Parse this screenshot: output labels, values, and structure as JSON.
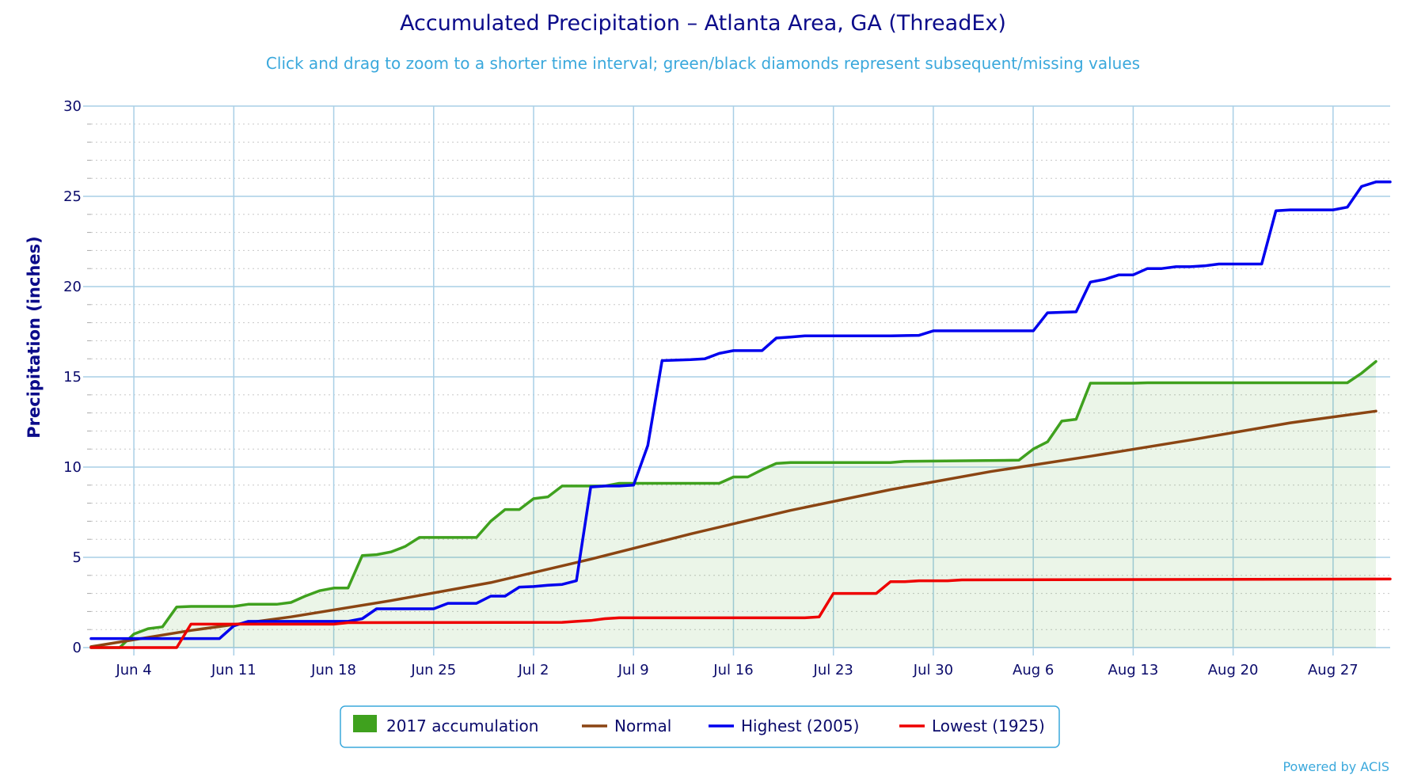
{
  "chart_data": {
    "type": "line",
    "title": "Accumulated Precipitation – Atlanta Area, GA (ThreadEx)",
    "subtitle": "Click and drag to zoom to a shorter time interval; green/black diamonds represent subsequent/missing values",
    "ylabel": "Precipitation (inches)",
    "ylim": [
      0,
      30
    ],
    "yticks": [
      0,
      5,
      10,
      15,
      20,
      25,
      30
    ],
    "x_unit": "day of period (Jun 1 = 1)",
    "xlim": [
      1,
      92
    ],
    "x_ticks": [
      {
        "day": 4,
        "label": "Jun 4"
      },
      {
        "day": 11,
        "label": "Jun 11"
      },
      {
        "day": 18,
        "label": "Jun 18"
      },
      {
        "day": 25,
        "label": "Jun 25"
      },
      {
        "day": 32,
        "label": "Jul 2"
      },
      {
        "day": 39,
        "label": "Jul 9"
      },
      {
        "day": 46,
        "label": "Jul 16"
      },
      {
        "day": 53,
        "label": "Jul 23"
      },
      {
        "day": 60,
        "label": "Jul 30"
      },
      {
        "day": 67,
        "label": "Aug 6"
      },
      {
        "day": 74,
        "label": "Aug 13"
      },
      {
        "day": 81,
        "label": "Aug 20"
      },
      {
        "day": 88,
        "label": "Aug 27"
      }
    ],
    "grid": true,
    "legend_position": "bottom-center",
    "series": [
      {
        "name": "2017 accumulation",
        "style": "area",
        "color": "#3fa11e",
        "points": [
          [
            1,
            0.0
          ],
          [
            3,
            0.0
          ],
          [
            4,
            0.75
          ],
          [
            5,
            1.05
          ],
          [
            6,
            1.15
          ],
          [
            7,
            2.25
          ],
          [
            8,
            2.28
          ],
          [
            11,
            2.28
          ],
          [
            12,
            2.4
          ],
          [
            14,
            2.4
          ],
          [
            15,
            2.5
          ],
          [
            16,
            2.85
          ],
          [
            17,
            3.15
          ],
          [
            18,
            3.3
          ],
          [
            19,
            3.3
          ],
          [
            20,
            5.1
          ],
          [
            21,
            5.15
          ],
          [
            22,
            5.3
          ],
          [
            23,
            5.6
          ],
          [
            24,
            6.1
          ],
          [
            28,
            6.1
          ],
          [
            29,
            7.0
          ],
          [
            30,
            7.65
          ],
          [
            31,
            7.65
          ],
          [
            32,
            8.25
          ],
          [
            33,
            8.35
          ],
          [
            34,
            8.95
          ],
          [
            37,
            8.95
          ],
          [
            38,
            9.1
          ],
          [
            40,
            9.1
          ],
          [
            45,
            9.1
          ],
          [
            46,
            9.45
          ],
          [
            47,
            9.45
          ],
          [
            48,
            9.85
          ],
          [
            49,
            10.2
          ],
          [
            50,
            10.25
          ],
          [
            57,
            10.25
          ],
          [
            58,
            10.32
          ],
          [
            66,
            10.38
          ],
          [
            67,
            11.0
          ],
          [
            68,
            11.4
          ],
          [
            69,
            12.55
          ],
          [
            70,
            12.65
          ],
          [
            71,
            14.65
          ],
          [
            74,
            14.65
          ],
          [
            75,
            14.67
          ],
          [
            89,
            14.67
          ],
          [
            90,
            15.2
          ],
          [
            91,
            15.85
          ]
        ]
      },
      {
        "name": "Normal",
        "style": "line",
        "color": "#8b4513",
        "points": [
          [
            1,
            0.05
          ],
          [
            8,
            0.95
          ],
          [
            15,
            1.7
          ],
          [
            22,
            2.6
          ],
          [
            29,
            3.6
          ],
          [
            36,
            4.9
          ],
          [
            43,
            6.3
          ],
          [
            50,
            7.6
          ],
          [
            57,
            8.75
          ],
          [
            64,
            9.75
          ],
          [
            71,
            10.6
          ],
          [
            78,
            11.5
          ],
          [
            85,
            12.45
          ],
          [
            91,
            13.1
          ]
        ]
      },
      {
        "name": "Highest (2005)",
        "style": "line",
        "color": "#0000ee",
        "points": [
          [
            1,
            0.5
          ],
          [
            10,
            0.5
          ],
          [
            11,
            1.2
          ],
          [
            12,
            1.45
          ],
          [
            19,
            1.45
          ],
          [
            20,
            1.6
          ],
          [
            21,
            2.15
          ],
          [
            25,
            2.15
          ],
          [
            26,
            2.45
          ],
          [
            28,
            2.45
          ],
          [
            29,
            2.85
          ],
          [
            30,
            2.85
          ],
          [
            31,
            3.35
          ],
          [
            32,
            3.38
          ],
          [
            33,
            3.45
          ],
          [
            34,
            3.5
          ],
          [
            35,
            3.7
          ],
          [
            36,
            8.9
          ],
          [
            37,
            8.95
          ],
          [
            38,
            8.95
          ],
          [
            39,
            9.0
          ],
          [
            40,
            11.2
          ],
          [
            41,
            15.9
          ],
          [
            43,
            15.95
          ],
          [
            44,
            16.0
          ],
          [
            45,
            16.3
          ],
          [
            46,
            16.45
          ],
          [
            48,
            16.45
          ],
          [
            49,
            17.15
          ],
          [
            50,
            17.2
          ],
          [
            51,
            17.27
          ],
          [
            57,
            17.27
          ],
          [
            59,
            17.3
          ],
          [
            60,
            17.55
          ],
          [
            67,
            17.55
          ],
          [
            68,
            18.55
          ],
          [
            70,
            18.6
          ],
          [
            71,
            20.25
          ],
          [
            72,
            20.4
          ],
          [
            73,
            20.65
          ],
          [
            74,
            20.65
          ],
          [
            75,
            21.0
          ],
          [
            76,
            21.0
          ],
          [
            77,
            21.1
          ],
          [
            78,
            21.1
          ],
          [
            79,
            21.15
          ],
          [
            80,
            21.25
          ],
          [
            83,
            21.25
          ],
          [
            84,
            24.2
          ],
          [
            85,
            24.25
          ],
          [
            88,
            24.25
          ],
          [
            89,
            24.4
          ],
          [
            90,
            25.55
          ],
          [
            91,
            25.8
          ],
          [
            92,
            25.8
          ]
        ]
      },
      {
        "name": "Lowest (1925)",
        "style": "line",
        "color": "#ee0000",
        "points": [
          [
            1,
            0.0
          ],
          [
            7,
            0.0
          ],
          [
            8,
            1.3
          ],
          [
            13,
            1.3
          ],
          [
            18,
            1.3
          ],
          [
            19,
            1.38
          ],
          [
            34,
            1.4
          ],
          [
            35,
            1.45
          ],
          [
            36,
            1.5
          ],
          [
            37,
            1.6
          ],
          [
            38,
            1.65
          ],
          [
            51,
            1.65
          ],
          [
            52,
            1.7
          ],
          [
            53,
            3.0
          ],
          [
            56,
            3.0
          ],
          [
            57,
            3.65
          ],
          [
            58,
            3.65
          ],
          [
            59,
            3.7
          ],
          [
            61,
            3.7
          ],
          [
            62,
            3.75
          ],
          [
            92,
            3.8
          ]
        ]
      }
    ],
    "credit": "Powered by ACIS"
  }
}
